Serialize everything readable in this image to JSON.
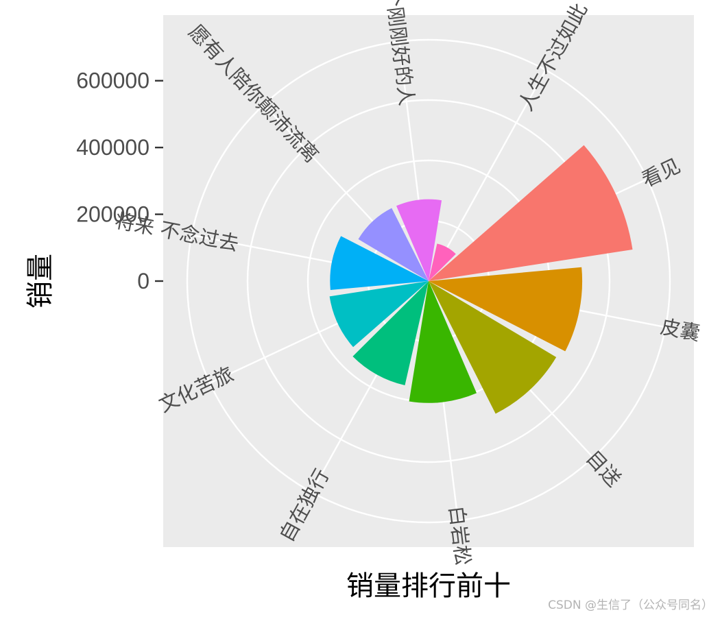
{
  "chart_data": {
    "type": "bar",
    "coord": "polar",
    "xlabel": "销量排行前十",
    "ylabel": "销量",
    "y_ticks": [
      0,
      200000,
      400000,
      600000
    ],
    "y_tick_labels": [
      "0",
      "200000",
      "400000",
      "600000"
    ],
    "grid": true,
    "categories": [
      "看见",
      "皮囊",
      "目送",
      "白岩松",
      "自在独行",
      "文化苦旅",
      "将来 不念过去",
      "愿有人陪你颠沛流离",
      "做一个刚刚好的人",
      "人生不过如此"
    ],
    "values": [
      618000,
      460000,
      445000,
      365000,
      320000,
      300000,
      295000,
      245000,
      245000,
      115000
    ],
    "colors": [
      "#F8766D",
      "#D89000",
      "#A3A500",
      "#39B600",
      "#00BF7D",
      "#00BFC4",
      "#00B0F6",
      "#9590FF",
      "#E76BF3",
      "#FF62BC"
    ]
  },
  "watermark": "CSDN @生信了（公众号同名）"
}
